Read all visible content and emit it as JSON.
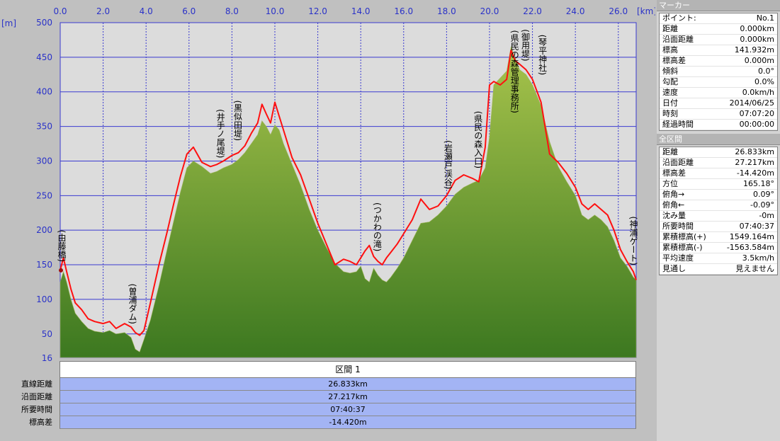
{
  "chart_data": {
    "type": "area",
    "x_unit": "[km]",
    "y_unit": "[m]",
    "xlim": [
      0,
      26.833
    ],
    "ylim": [
      16,
      500
    ],
    "x_ticks": [
      0.0,
      2.0,
      4.0,
      6.0,
      8.0,
      10.0,
      12.0,
      14.0,
      16.0,
      18.0,
      20.0,
      22.0,
      24.0,
      26.0
    ],
    "x_tick_labels": [
      "0.0",
      "2.0",
      "4.0",
      "6.0",
      "8.0",
      "10.0",
      "12.0",
      "14.0",
      "16.0",
      "18.0",
      "20.0",
      "22.0",
      "24.0",
      "26.0"
    ],
    "y_ticks": [
      500,
      450,
      400,
      350,
      300,
      250,
      200,
      150,
      100,
      50
    ],
    "y_tick_labels": [
      "500",
      "450",
      "400",
      "350",
      "300",
      "250",
      "200",
      "150",
      "100",
      "50"
    ],
    "y_min_label": "16",
    "grid": true,
    "series": [
      {
        "kind": "area",
        "x": [
          0.0,
          0.15,
          0.3,
          0.5,
          0.7,
          1.0,
          1.3,
          1.6,
          2.0,
          2.3,
          2.6,
          3.0,
          3.3,
          3.5,
          3.7,
          3.9,
          4.2,
          4.6,
          5.0,
          5.3,
          5.6,
          5.9,
          6.2,
          6.6,
          7.0,
          7.3,
          7.6,
          8.0,
          8.3,
          8.6,
          8.9,
          9.2,
          9.4,
          9.6,
          9.8,
          10.0,
          10.2,
          10.4,
          10.8,
          11.2,
          11.6,
          12.0,
          12.4,
          12.8,
          13.2,
          13.5,
          13.8,
          14.0,
          14.2,
          14.4,
          14.6,
          14.8,
          15.0,
          15.2,
          15.4,
          15.7,
          16.0,
          16.4,
          16.8,
          17.2,
          17.6,
          18.0,
          18.4,
          18.8,
          19.2,
          19.5,
          19.8,
          20.0,
          20.2,
          20.5,
          20.8,
          21.0,
          21.2,
          21.4,
          21.7,
          22.0,
          22.4,
          22.8,
          23.2,
          23.6,
          24.0,
          24.3,
          24.6,
          24.9,
          25.2,
          25.5,
          25.8,
          26.1,
          26.4,
          26.7,
          26.833
        ],
        "values": [
          125,
          140,
          125,
          100,
          80,
          68,
          58,
          54,
          52,
          55,
          50,
          52,
          45,
          28,
          24,
          42,
          70,
          120,
          175,
          215,
          255,
          290,
          300,
          292,
          282,
          285,
          290,
          295,
          302,
          312,
          325,
          338,
          358,
          350,
          338,
          352,
          345,
          325,
          295,
          265,
          230,
          200,
          175,
          152,
          140,
          138,
          140,
          148,
          130,
          125,
          145,
          135,
          128,
          125,
          132,
          145,
          160,
          185,
          210,
          212,
          222,
          235,
          252,
          262,
          268,
          272,
          290,
          335,
          410,
          420,
          430,
          465,
          448,
          432,
          425,
          410,
          380,
          328,
          292,
          270,
          250,
          222,
          215,
          222,
          215,
          205,
          185,
          160,
          148,
          132,
          128
        ]
      },
      {
        "kind": "line",
        "x": [
          0.0,
          0.15,
          0.3,
          0.5,
          0.7,
          1.0,
          1.3,
          1.6,
          2.0,
          2.3,
          2.6,
          3.0,
          3.3,
          3.5,
          3.7,
          3.9,
          4.2,
          4.6,
          5.0,
          5.3,
          5.6,
          5.9,
          6.2,
          6.6,
          7.0,
          7.3,
          7.6,
          8.0,
          8.3,
          8.6,
          8.9,
          9.2,
          9.4,
          9.6,
          9.8,
          10.0,
          10.2,
          10.4,
          10.8,
          11.2,
          11.6,
          12.0,
          12.4,
          12.8,
          13.2,
          13.5,
          13.8,
          14.0,
          14.2,
          14.4,
          14.6,
          14.8,
          15.0,
          15.2,
          15.4,
          15.7,
          16.0,
          16.4,
          16.8,
          17.2,
          17.6,
          18.0,
          18.4,
          18.8,
          19.2,
          19.5,
          19.8,
          20.0,
          20.2,
          20.5,
          20.8,
          21.0,
          21.2,
          21.4,
          21.7,
          22.0,
          22.4,
          22.8,
          23.2,
          23.6,
          24.0,
          24.3,
          24.6,
          24.9,
          25.2,
          25.5,
          25.8,
          26.1,
          26.4,
          26.7,
          26.833
        ],
        "values": [
          142,
          160,
          140,
          115,
          95,
          85,
          72,
          68,
          65,
          68,
          58,
          65,
          60,
          52,
          48,
          55,
          95,
          150,
          200,
          240,
          278,
          310,
          320,
          298,
          292,
          295,
          300,
          308,
          312,
          322,
          340,
          355,
          382,
          368,
          355,
          385,
          365,
          345,
          305,
          280,
          245,
          210,
          180,
          150,
          158,
          155,
          150,
          160,
          170,
          178,
          162,
          155,
          150,
          160,
          168,
          180,
          195,
          215,
          245,
          230,
          235,
          250,
          272,
          280,
          275,
          270,
          320,
          410,
          415,
          410,
          418,
          460,
          445,
          440,
          432,
          418,
          385,
          310,
          298,
          282,
          262,
          238,
          230,
          238,
          230,
          222,
          200,
          172,
          155,
          140,
          128
        ]
      }
    ],
    "annotations": [
      {
        "x": 0.0,
        "y": 150,
        "text": "(由藤橋)"
      },
      {
        "x": 3.3,
        "y": 60,
        "text": "(曽浦ダム)"
      },
      {
        "x": 7.4,
        "y": 300,
        "text": "(井手ノ尾堤)"
      },
      {
        "x": 8.2,
        "y": 325,
        "text": "(黒似田堤)"
      },
      {
        "x": 14.7,
        "y": 165,
        "text": "(つかわの滝)"
      },
      {
        "x": 18.0,
        "y": 255,
        "text": "(岩瀬戸渓谷)"
      },
      {
        "x": 19.4,
        "y": 285,
        "text": "(県民の森入口)"
      },
      {
        "x": 21.1,
        "y": 365,
        "text": "(県民の森管理事務所)"
      },
      {
        "x": 21.6,
        "y": 440,
        "text": "(御用堤)"
      },
      {
        "x": 22.4,
        "y": 420,
        "text": "(琴平神社)"
      },
      {
        "x": 26.7,
        "y": 145,
        "text": "(神浦ゲート)"
      }
    ]
  },
  "section": {
    "header": "区間 1",
    "rows": [
      {
        "label": "直線距離",
        "value": "26.833km"
      },
      {
        "label": "沿面距離",
        "value": "27.217km"
      },
      {
        "label": "所要時間",
        "value": "07:40:37"
      },
      {
        "label": "標高差",
        "value": "-14.420m"
      }
    ]
  },
  "panel": {
    "marker_title": "マーカー",
    "marker_rows": [
      {
        "k": "ポイント:",
        "v": "No.1"
      },
      {
        "k": "距離",
        "v": "0.000km"
      },
      {
        "k": "沿面距離",
        "v": "0.000km"
      },
      {
        "k": "標高",
        "v": "141.932m"
      },
      {
        "k": "標高差",
        "v": "0.000m"
      },
      {
        "k": "傾斜",
        "v": "0.0°"
      },
      {
        "k": "勾配",
        "v": "0.0%"
      },
      {
        "k": "速度",
        "v": "0.0km/h"
      },
      {
        "k": "日付",
        "v": "2014/06/25"
      },
      {
        "k": "時刻",
        "v": "07:07:20"
      },
      {
        "k": "経過時間",
        "v": "00:00:00"
      }
    ],
    "total_title": "全区間",
    "total_rows": [
      {
        "k": "距離",
        "v": "26.833km"
      },
      {
        "k": "沿面距離",
        "v": "27.217km"
      },
      {
        "k": "標高差",
        "v": "-14.420m"
      },
      {
        "k": "方位",
        "v": "165.18°"
      },
      {
        "k": "俯角→",
        "v": "0.09°"
      },
      {
        "k": "俯角←",
        "v": "-0.09°"
      },
      {
        "k": "沈み量",
        "v": "-0m"
      },
      {
        "k": "所要時間",
        "v": "07:40:37"
      },
      {
        "k": "累積標高(+)",
        "v": "1549.164m"
      },
      {
        "k": "累積標高(-)",
        "v": "-1563.584m"
      },
      {
        "k": "平均速度",
        "v": "3.5km/h"
      },
      {
        "k": "見通し",
        "v": "見えません"
      }
    ]
  },
  "colors": {
    "plot_bg": "#dcdcdc",
    "grid": "#3a3ad0",
    "axis_text": "#2a32c8",
    "area_top": "#a6c24a",
    "area_bottom": "#3e7a22",
    "line": "#ff1010",
    "table_bg": "#a3b4f4"
  }
}
